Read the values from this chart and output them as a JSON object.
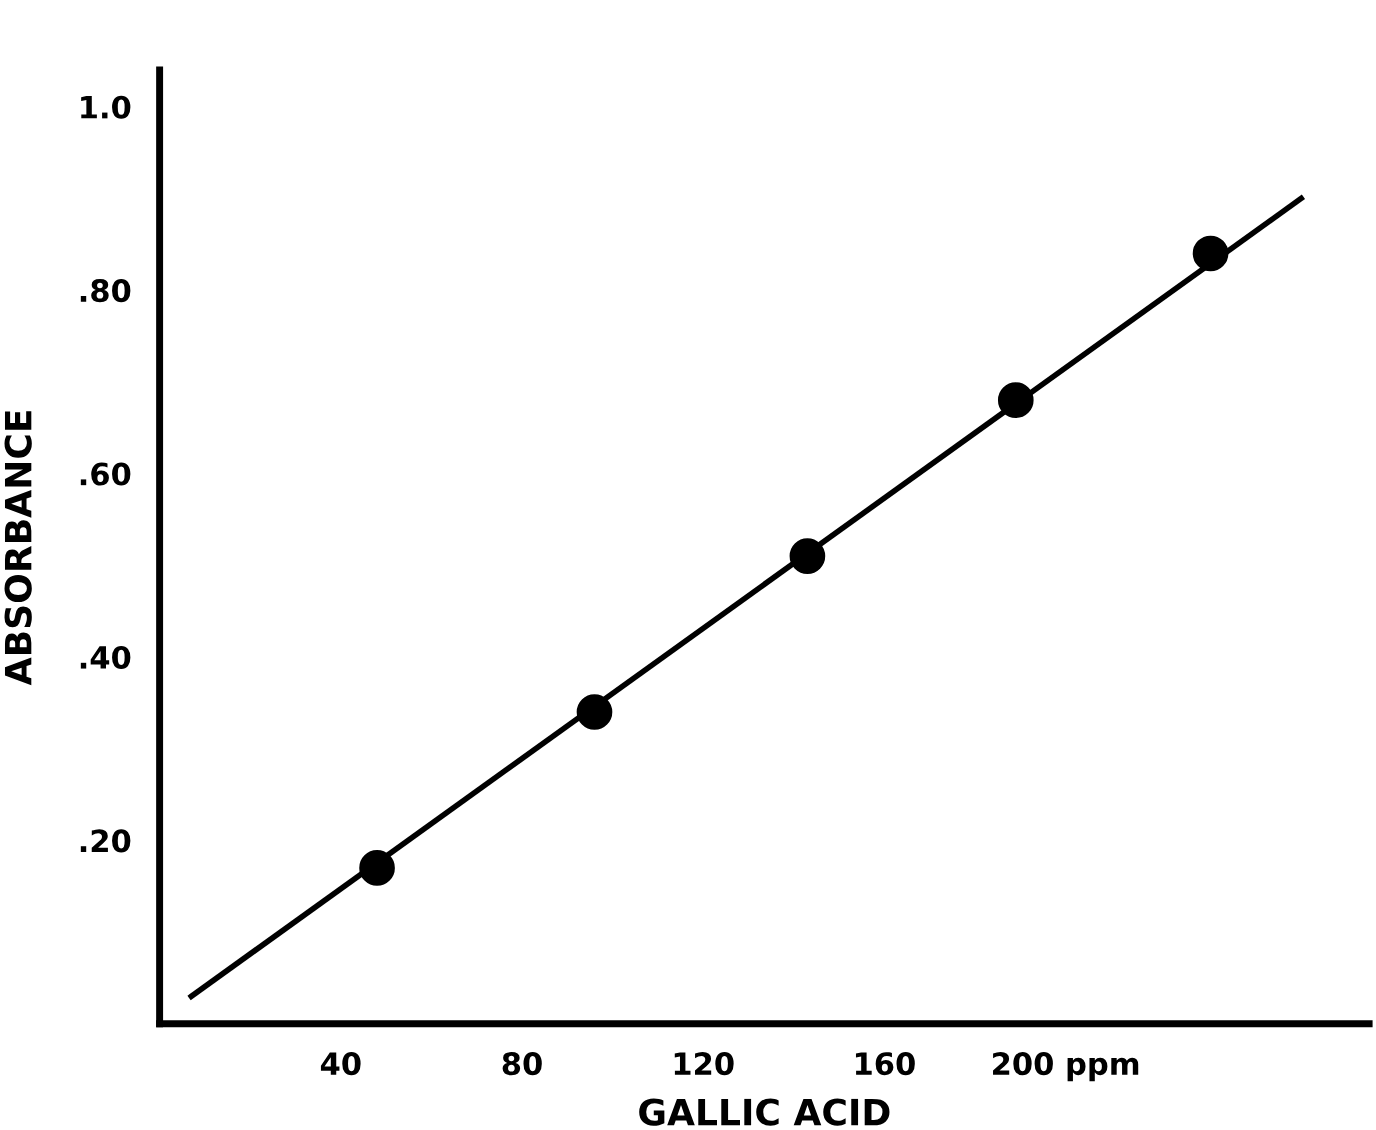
{
  "chart_data": {
    "type": "scatter",
    "xlabel": "GALLIC ACID",
    "ylabel": "ABSORBANCE",
    "series": [
      {
        "color": "#000000",
        "x": [
          48,
          96,
          143,
          189,
          232
        ],
        "values": [
          0.17,
          0.34,
          0.51,
          0.68,
          0.84
        ],
        "marker": "circle"
      },
      {
        "type": "line",
        "color": "#000000",
        "x": [
          7,
          252
        ],
        "values": [
          0.03,
          0.9
        ],
        "marker": "none",
        "line_style": "solid"
      }
    ],
    "xlim": [
      0,
      267
    ],
    "ylim": [
      0,
      1.04
    ],
    "xticks": [
      40,
      80,
      120,
      160,
      {
        "value": 200,
        "label": "200 ppm"
      }
    ],
    "yticks": [
      {
        "value": 0.2,
        "label": ".20"
      },
      {
        "value": 0.4,
        "label": ".40"
      },
      {
        "value": 0.6,
        "label": ".60"
      },
      {
        "value": 0.8,
        "label": ".80"
      },
      {
        "value": 1.0,
        "label": "1.0"
      }
    ],
    "grid": false,
    "legend": false
  }
}
